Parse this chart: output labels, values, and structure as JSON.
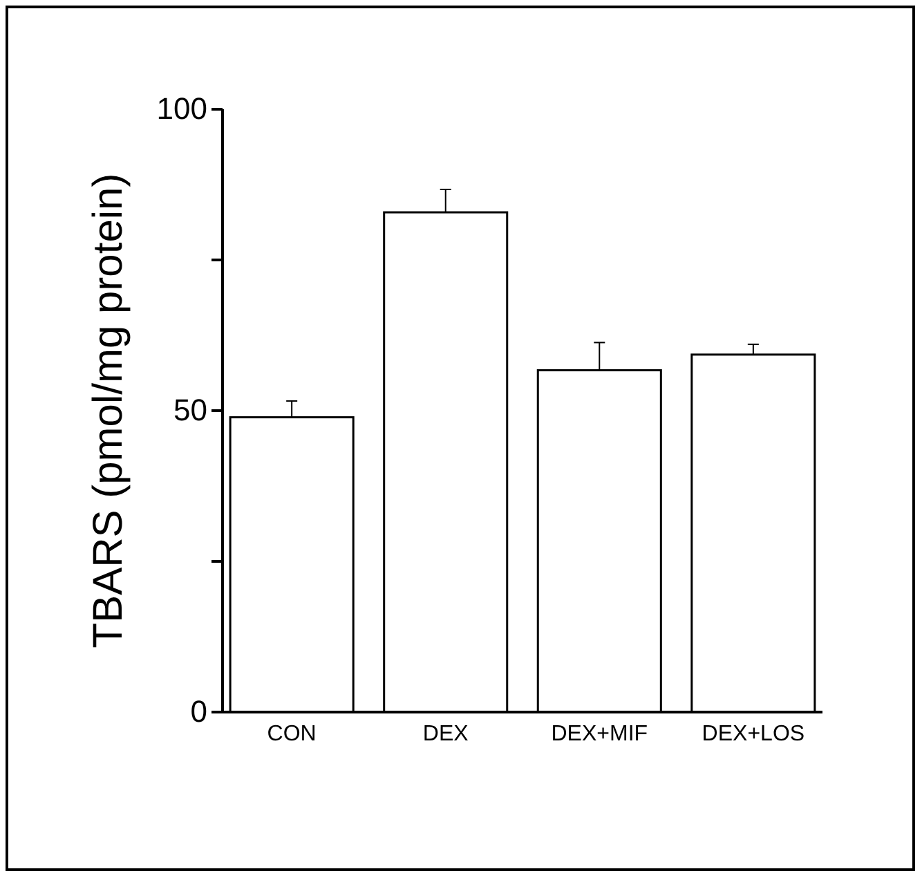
{
  "chart_data": {
    "type": "bar",
    "ylabel": "TBARS (pmol/mg protein)",
    "categories": [
      "CON",
      "DEX",
      "DEX+MIF",
      "DEX+LOS"
    ],
    "values": [
      48.9,
      82.9,
      56.7,
      59.3
    ],
    "errors": [
      [
        48.9,
        51.6
      ],
      [
        82.9,
        86.7
      ],
      [
        56.7,
        61.3
      ],
      [
        59.3,
        61.0
      ]
    ],
    "color": "#ffffff",
    "ylim": [
      0,
      100
    ],
    "yticks": [
      0,
      {
        "value": 25,
        "label": null
      },
      50,
      {
        "value": 75,
        "label": null
      },
      100
    ],
    "grid": false
  }
}
